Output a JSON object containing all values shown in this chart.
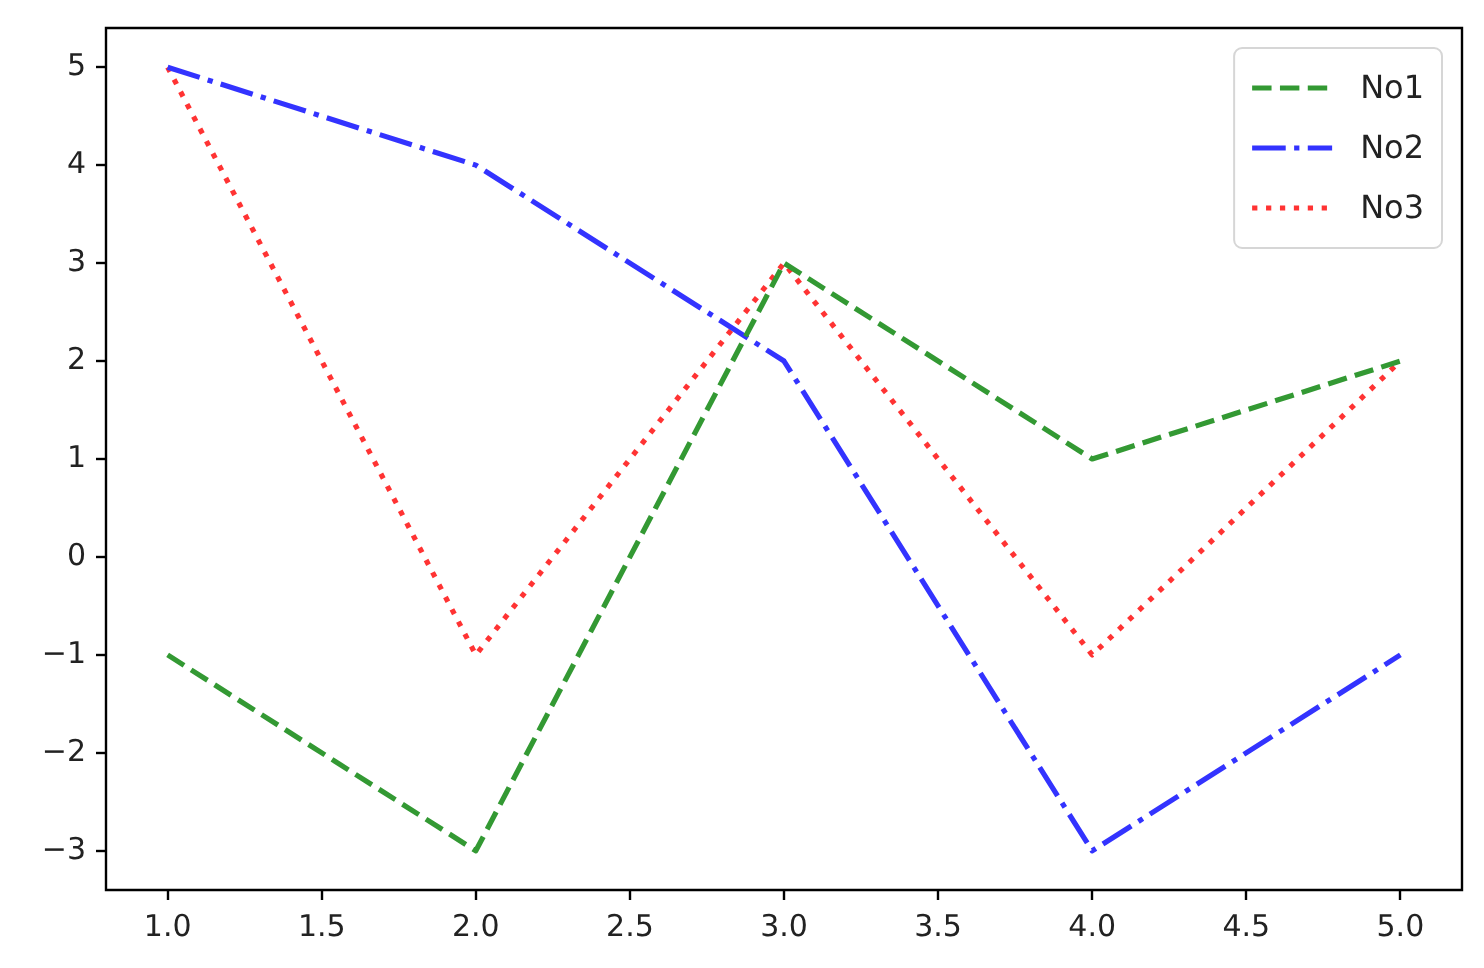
{
  "chart_data": {
    "type": "line",
    "x": [
      1,
      2,
      3,
      4,
      5
    ],
    "series": [
      {
        "name": "No1",
        "color": "#339933",
        "line_style": "dashed",
        "values": [
          -1,
          -3,
          3,
          1,
          2
        ]
      },
      {
        "name": "No2",
        "color": "#3333ff",
        "line_style": "dashdot",
        "values": [
          5,
          4,
          2,
          -3,
          -1
        ]
      },
      {
        "name": "No3",
        "color": "#ff3333",
        "line_style": "dotted",
        "values": [
          5,
          -1,
          3,
          -1,
          2
        ]
      }
    ],
    "xlim": [
      0.8,
      5.2
    ],
    "xticks": [
      {
        "value": 1,
        "label": "1.0"
      },
      {
        "value": 1.5,
        "label": "1.5"
      },
      {
        "value": 2,
        "label": "2.0"
      },
      {
        "value": 2.5,
        "label": "2.5"
      },
      {
        "value": 3,
        "label": "3.0"
      },
      {
        "value": 3.5,
        "label": "3.5"
      },
      {
        "value": 4,
        "label": "4.0"
      },
      {
        "value": 4.5,
        "label": "4.5"
      },
      {
        "value": 5,
        "label": "5.0"
      }
    ],
    "ylim": [
      -3.4,
      5.4
    ],
    "yticks": [
      {
        "value": -3,
        "label": "−3"
      },
      {
        "value": -2,
        "label": "−2"
      },
      {
        "value": -1,
        "label": "−1"
      },
      0,
      1,
      2,
      3,
      4,
      5
    ],
    "legend": "top right",
    "marker": "none"
  }
}
